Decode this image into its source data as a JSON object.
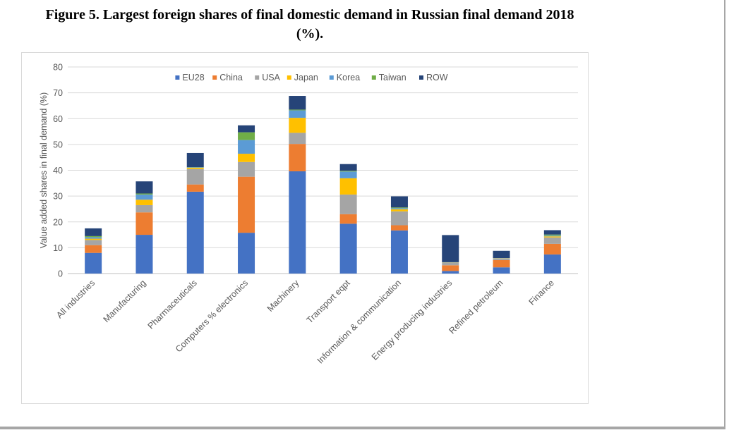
{
  "figure": {
    "title_line1": "Figure 5. Largest foreign shares of final domestic demand in Russian final demand 2018",
    "title_line2": "(%)."
  },
  "chart_data": {
    "type": "bar",
    "stacked": true,
    "categories": [
      "All industries",
      "Manufacturing",
      "Pharmaceuticals",
      "Computers % electronics",
      "Machinery",
      "Transport eqpt",
      "Information & communication",
      "Energy producing industries",
      "Refined petroleum",
      "Finance"
    ],
    "ylabel": "Value added shares in final demand (%)",
    "xlabel": "",
    "ylim": [
      0,
      80
    ],
    "yticks": [
      0,
      10,
      20,
      30,
      40,
      50,
      60,
      70,
      80
    ],
    "grid": true,
    "legend_position": "top",
    "series": [
      {
        "name": "EU28",
        "color": "#4472c4",
        "values": [
          8.0,
          15.0,
          31.7,
          15.8,
          39.6,
          19.3,
          16.7,
          1.0,
          2.4,
          7.4
        ]
      },
      {
        "name": "China",
        "color": "#ed7d31",
        "values": [
          3.0,
          8.7,
          2.8,
          21.7,
          10.6,
          3.7,
          2.0,
          2.2,
          2.8,
          4.1
        ]
      },
      {
        "name": "USA",
        "color": "#a5a5a5",
        "values": [
          2.0,
          2.8,
          6.0,
          5.7,
          4.3,
          7.6,
          5.4,
          1.0,
          0.6,
          2.5
        ]
      },
      {
        "name": "Japan",
        "color": "#ffc000",
        "values": [
          0.5,
          2.1,
          0.5,
          3.2,
          5.8,
          6.3,
          0.8,
          0.1,
          0.1,
          0.4
        ]
      },
      {
        "name": "Korea",
        "color": "#5b9bd5",
        "values": [
          0.6,
          2.0,
          0.1,
          5.3,
          2.9,
          2.6,
          0.4,
          0.1,
          0.1,
          0.3
        ]
      },
      {
        "name": "Taiwan",
        "color": "#70ad47",
        "values": [
          0.4,
          0.4,
          0.1,
          3.0,
          0.3,
          0.3,
          0.3,
          0.0,
          0.0,
          0.4
        ]
      },
      {
        "name": "ROW",
        "color": "#264478",
        "values": [
          3.0,
          4.7,
          5.5,
          2.7,
          5.3,
          2.6,
          4.3,
          10.5,
          2.8,
          1.7
        ]
      }
    ]
  }
}
